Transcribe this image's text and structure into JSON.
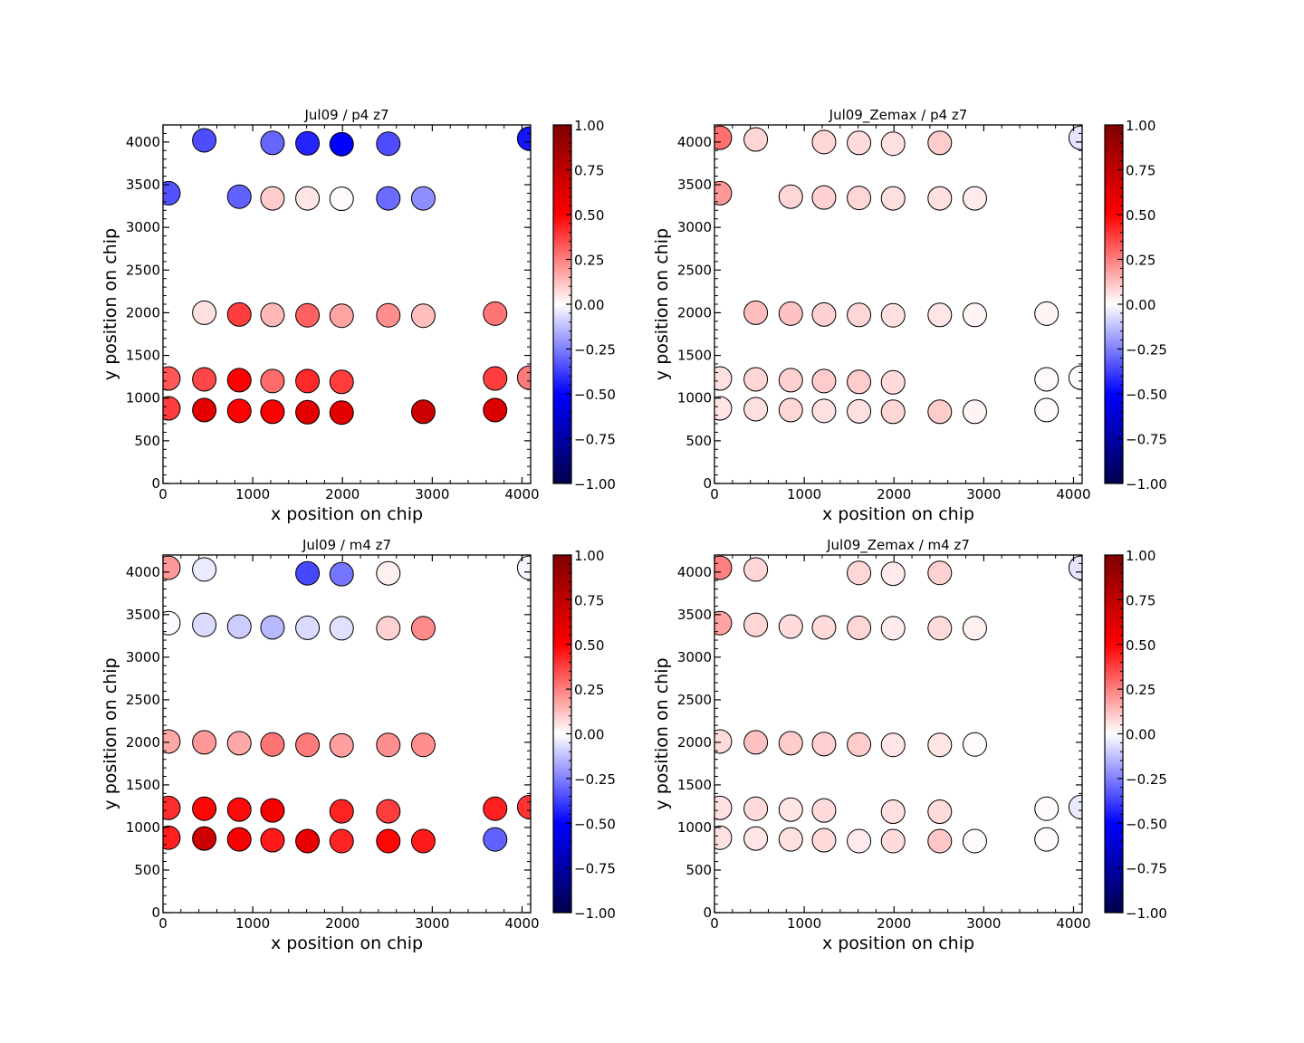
{
  "chart_data": {
    "type": "scatter",
    "colormap": "seismic",
    "colormap_stops": [
      "#00004c",
      "#0000ff",
      "#ffffff",
      "#ff0000",
      "#7f0000"
    ],
    "marker_edge_color": "#000000",
    "panels": [
      {
        "title": "Jul09 / p4 z7",
        "xlabel": "x position on chip",
        "ylabel": "y position on chip",
        "xlim": [
          0,
          4096
        ],
        "ylim": [
          0,
          4200
        ],
        "xticks": [
          "0",
          "1000",
          "2000",
          "3000",
          "4000"
        ],
        "yticks": [
          "0",
          "500",
          "1000",
          "1500",
          "2000",
          "2500",
          "3000",
          "3500",
          "4000"
        ],
        "colorbar": {
          "range": [
            -1,
            1
          ],
          "ticks": [
            "1.00",
            "0.75",
            "0.50",
            "0.25",
            "0.00",
            "−0.25",
            "−0.50",
            "−0.75",
            "−1.00"
          ]
        },
        "points": [
          {
            "x": 460,
            "y": 4020,
            "v": -0.35
          },
          {
            "x": 1220,
            "y": 3990,
            "v": -0.3
          },
          {
            "x": 1610,
            "y": 3985,
            "v": -0.43
          },
          {
            "x": 1990,
            "y": 3975,
            "v": -0.5
          },
          {
            "x": 2510,
            "y": 3980,
            "v": -0.35
          },
          {
            "x": 4080,
            "y": 4040,
            "v": -0.46
          },
          {
            "x": 60,
            "y": 3400,
            "v": -0.34
          },
          {
            "x": 850,
            "y": 3360,
            "v": -0.31
          },
          {
            "x": 1220,
            "y": 3340,
            "v": 0.1
          },
          {
            "x": 1610,
            "y": 3340,
            "v": 0.05
          },
          {
            "x": 1990,
            "y": 3335,
            "v": 0.01
          },
          {
            "x": 2510,
            "y": 3340,
            "v": -0.29
          },
          {
            "x": 2900,
            "y": 3340,
            "v": -0.22
          },
          {
            "x": 460,
            "y": 2000,
            "v": 0.06
          },
          {
            "x": 850,
            "y": 1980,
            "v": 0.38
          },
          {
            "x": 1220,
            "y": 1975,
            "v": 0.14
          },
          {
            "x": 1610,
            "y": 1970,
            "v": 0.31
          },
          {
            "x": 1990,
            "y": 1965,
            "v": 0.18
          },
          {
            "x": 2510,
            "y": 1970,
            "v": 0.22
          },
          {
            "x": 2900,
            "y": 1965,
            "v": 0.13
          },
          {
            "x": 3700,
            "y": 1990,
            "v": 0.27
          },
          {
            "x": 60,
            "y": 1230,
            "v": 0.33
          },
          {
            "x": 460,
            "y": 1220,
            "v": 0.36
          },
          {
            "x": 850,
            "y": 1210,
            "v": 0.5
          },
          {
            "x": 1220,
            "y": 1200,
            "v": 0.29
          },
          {
            "x": 1610,
            "y": 1200,
            "v": 0.42
          },
          {
            "x": 1990,
            "y": 1190,
            "v": 0.38
          },
          {
            "x": 3700,
            "y": 1230,
            "v": 0.38
          },
          {
            "x": 4080,
            "y": 1240,
            "v": 0.26
          },
          {
            "x": 60,
            "y": 880,
            "v": 0.38
          },
          {
            "x": 460,
            "y": 860,
            "v": 0.6
          },
          {
            "x": 850,
            "y": 850,
            "v": 0.5
          },
          {
            "x": 1220,
            "y": 840,
            "v": 0.5
          },
          {
            "x": 1610,
            "y": 835,
            "v": 0.6
          },
          {
            "x": 1990,
            "y": 830,
            "v": 0.6
          },
          {
            "x": 2900,
            "y": 840,
            "v": 0.7
          },
          {
            "x": 3700,
            "y": 860,
            "v": 0.64
          }
        ]
      },
      {
        "title": "Jul09_Zemax / p4 z7",
        "xlabel": "x position on chip",
        "ylabel": "y position on chip",
        "xlim": [
          0,
          4096
        ],
        "ylim": [
          0,
          4200
        ],
        "xticks": [
          "0",
          "1000",
          "2000",
          "3000",
          "4000"
        ],
        "yticks": [
          "0",
          "500",
          "1000",
          "1500",
          "2000",
          "2500",
          "3000",
          "3500",
          "4000"
        ],
        "colorbar": {
          "range": [
            -1,
            1
          ],
          "ticks": [
            "1.00",
            "0.75",
            "0.50",
            "0.25",
            "0.00",
            "−0.25",
            "−0.50",
            "−0.75",
            "−1.00"
          ]
        },
        "points": [
          {
            "x": 60,
            "y": 4050,
            "v": 0.28
          },
          {
            "x": 460,
            "y": 4030,
            "v": 0.08
          },
          {
            "x": 1220,
            "y": 4000,
            "v": 0.08
          },
          {
            "x": 1610,
            "y": 3990,
            "v": 0.07
          },
          {
            "x": 1990,
            "y": 3980,
            "v": 0.06
          },
          {
            "x": 2510,
            "y": 3990,
            "v": 0.1
          },
          {
            "x": 4080,
            "y": 4050,
            "v": -0.05
          },
          {
            "x": 60,
            "y": 3400,
            "v": 0.2
          },
          {
            "x": 850,
            "y": 3360,
            "v": 0.08
          },
          {
            "x": 1220,
            "y": 3350,
            "v": 0.09
          },
          {
            "x": 1610,
            "y": 3345,
            "v": 0.08
          },
          {
            "x": 1990,
            "y": 3340,
            "v": 0.06
          },
          {
            "x": 2510,
            "y": 3340,
            "v": 0.06
          },
          {
            "x": 2900,
            "y": 3340,
            "v": 0.04
          },
          {
            "x": 460,
            "y": 2000,
            "v": 0.13
          },
          {
            "x": 850,
            "y": 1990,
            "v": 0.12
          },
          {
            "x": 1220,
            "y": 1980,
            "v": 0.09
          },
          {
            "x": 1610,
            "y": 1975,
            "v": 0.08
          },
          {
            "x": 1990,
            "y": 1970,
            "v": 0.06
          },
          {
            "x": 2510,
            "y": 1975,
            "v": 0.05
          },
          {
            "x": 2900,
            "y": 1975,
            "v": 0.02
          },
          {
            "x": 3700,
            "y": 1990,
            "v": 0.02
          },
          {
            "x": 60,
            "y": 1230,
            "v": 0.06
          },
          {
            "x": 460,
            "y": 1220,
            "v": 0.08
          },
          {
            "x": 850,
            "y": 1210,
            "v": 0.09
          },
          {
            "x": 1220,
            "y": 1200,
            "v": 0.1
          },
          {
            "x": 1610,
            "y": 1190,
            "v": 0.1
          },
          {
            "x": 1990,
            "y": 1185,
            "v": 0.07
          },
          {
            "x": 3700,
            "y": 1220,
            "v": 0.01
          },
          {
            "x": 4080,
            "y": 1240,
            "v": -0.01
          },
          {
            "x": 60,
            "y": 880,
            "v": 0.05
          },
          {
            "x": 460,
            "y": 870,
            "v": 0.06
          },
          {
            "x": 850,
            "y": 860,
            "v": 0.08
          },
          {
            "x": 1220,
            "y": 850,
            "v": 0.06
          },
          {
            "x": 1610,
            "y": 845,
            "v": 0.06
          },
          {
            "x": 1990,
            "y": 840,
            "v": 0.08
          },
          {
            "x": 2510,
            "y": 840,
            "v": 0.1
          },
          {
            "x": 2900,
            "y": 840,
            "v": 0.02
          },
          {
            "x": 3700,
            "y": 860,
            "v": 0.01
          }
        ]
      },
      {
        "title": "Jul09 / m4 z7",
        "xlabel": "x position on chip",
        "ylabel": "y position on chip",
        "xlim": [
          0,
          4096
        ],
        "ylim": [
          0,
          4200
        ],
        "xticks": [
          "0",
          "1000",
          "2000",
          "3000",
          "4000"
        ],
        "yticks": [
          "0",
          "500",
          "1000",
          "1500",
          "2000",
          "2500",
          "3000",
          "3500",
          "4000"
        ],
        "colorbar": {
          "range": [
            -1,
            1
          ],
          "ticks": [
            "1.00",
            "0.75",
            "0.50",
            "0.25",
            "0.00",
            "−0.25",
            "−0.50",
            "−0.75",
            "−1.00"
          ]
        },
        "points": [
          {
            "x": 60,
            "y": 4050,
            "v": 0.2
          },
          {
            "x": 460,
            "y": 4030,
            "v": -0.04
          },
          {
            "x": 1610,
            "y": 3985,
            "v": -0.36
          },
          {
            "x": 1990,
            "y": 3975,
            "v": -0.27
          },
          {
            "x": 2510,
            "y": 3985,
            "v": 0.03
          },
          {
            "x": 4080,
            "y": 4050,
            "v": -0.02
          },
          {
            "x": 60,
            "y": 3400,
            "v": -0.01
          },
          {
            "x": 460,
            "y": 3380,
            "v": -0.07
          },
          {
            "x": 850,
            "y": 3360,
            "v": -0.1
          },
          {
            "x": 1220,
            "y": 3350,
            "v": -0.14
          },
          {
            "x": 1610,
            "y": 3345,
            "v": -0.07
          },
          {
            "x": 1990,
            "y": 3340,
            "v": -0.06
          },
          {
            "x": 2510,
            "y": 3340,
            "v": 0.09
          },
          {
            "x": 2900,
            "y": 3340,
            "v": 0.23
          },
          {
            "x": 60,
            "y": 2010,
            "v": 0.17
          },
          {
            "x": 460,
            "y": 2000,
            "v": 0.2
          },
          {
            "x": 850,
            "y": 1990,
            "v": 0.17
          },
          {
            "x": 1220,
            "y": 1975,
            "v": 0.27
          },
          {
            "x": 1610,
            "y": 1970,
            "v": 0.26
          },
          {
            "x": 1990,
            "y": 1965,
            "v": 0.19
          },
          {
            "x": 2510,
            "y": 1970,
            "v": 0.22
          },
          {
            "x": 2900,
            "y": 1970,
            "v": 0.22
          },
          {
            "x": 60,
            "y": 1230,
            "v": 0.41
          },
          {
            "x": 460,
            "y": 1220,
            "v": 0.49
          },
          {
            "x": 850,
            "y": 1210,
            "v": 0.48
          },
          {
            "x": 1220,
            "y": 1200,
            "v": 0.53
          },
          {
            "x": 1990,
            "y": 1190,
            "v": 0.43
          },
          {
            "x": 2510,
            "y": 1190,
            "v": 0.38
          },
          {
            "x": 3700,
            "y": 1220,
            "v": 0.44
          },
          {
            "x": 4080,
            "y": 1240,
            "v": 0.4
          },
          {
            "x": 60,
            "y": 880,
            "v": 0.44
          },
          {
            "x": 460,
            "y": 870,
            "v": 0.7
          },
          {
            "x": 850,
            "y": 860,
            "v": 0.53
          },
          {
            "x": 1220,
            "y": 850,
            "v": 0.45
          },
          {
            "x": 1610,
            "y": 840,
            "v": 0.59
          },
          {
            "x": 1990,
            "y": 840,
            "v": 0.43
          },
          {
            "x": 2510,
            "y": 840,
            "v": 0.49
          },
          {
            "x": 2900,
            "y": 840,
            "v": 0.45
          },
          {
            "x": 3700,
            "y": 860,
            "v": -0.31
          }
        ]
      },
      {
        "title": "Jul09_Zemax / m4 z7",
        "xlabel": "x position on chip",
        "ylabel": "y position on chip",
        "xlim": [
          0,
          4096
        ],
        "ylim": [
          0,
          4200
        ],
        "xticks": [
          "0",
          "1000",
          "2000",
          "3000",
          "4000"
        ],
        "yticks": [
          "0",
          "500",
          "1000",
          "1500",
          "2000",
          "2500",
          "3000",
          "3500",
          "4000"
        ],
        "colorbar": {
          "range": [
            -1,
            1
          ],
          "ticks": [
            "1.00",
            "0.75",
            "0.50",
            "0.25",
            "0.00",
            "−0.25",
            "−0.50",
            "−0.75",
            "−1.00"
          ]
        },
        "points": [
          {
            "x": 60,
            "y": 4050,
            "v": 0.25
          },
          {
            "x": 460,
            "y": 4030,
            "v": 0.08
          },
          {
            "x": 1610,
            "y": 3990,
            "v": 0.08
          },
          {
            "x": 1990,
            "y": 3980,
            "v": 0.04
          },
          {
            "x": 2510,
            "y": 3990,
            "v": 0.09
          },
          {
            "x": 4080,
            "y": 4050,
            "v": -0.05
          },
          {
            "x": 60,
            "y": 3400,
            "v": 0.18
          },
          {
            "x": 460,
            "y": 3380,
            "v": 0.08
          },
          {
            "x": 850,
            "y": 3360,
            "v": 0.07
          },
          {
            "x": 1220,
            "y": 3350,
            "v": 0.07
          },
          {
            "x": 1610,
            "y": 3345,
            "v": 0.08
          },
          {
            "x": 1990,
            "y": 3340,
            "v": 0.04
          },
          {
            "x": 2510,
            "y": 3340,
            "v": 0.07
          },
          {
            "x": 2900,
            "y": 3340,
            "v": 0.03
          },
          {
            "x": 60,
            "y": 2010,
            "v": 0.07
          },
          {
            "x": 460,
            "y": 2000,
            "v": 0.12
          },
          {
            "x": 850,
            "y": 1990,
            "v": 0.1
          },
          {
            "x": 1220,
            "y": 1980,
            "v": 0.09
          },
          {
            "x": 1610,
            "y": 1975,
            "v": 0.1
          },
          {
            "x": 1990,
            "y": 1970,
            "v": 0.05
          },
          {
            "x": 2510,
            "y": 1970,
            "v": 0.05
          },
          {
            "x": 2900,
            "y": 1975,
            "v": 0.01
          },
          {
            "x": 60,
            "y": 1230,
            "v": 0.06
          },
          {
            "x": 460,
            "y": 1220,
            "v": 0.07
          },
          {
            "x": 850,
            "y": 1210,
            "v": 0.05
          },
          {
            "x": 1220,
            "y": 1200,
            "v": 0.07
          },
          {
            "x": 1990,
            "y": 1185,
            "v": 0.06
          },
          {
            "x": 2510,
            "y": 1185,
            "v": 0.07
          },
          {
            "x": 3700,
            "y": 1220,
            "v": 0.01
          },
          {
            "x": 4080,
            "y": 1240,
            "v": -0.04
          },
          {
            "x": 60,
            "y": 880,
            "v": 0.06
          },
          {
            "x": 460,
            "y": 870,
            "v": 0.05
          },
          {
            "x": 850,
            "y": 860,
            "v": 0.06
          },
          {
            "x": 1220,
            "y": 850,
            "v": 0.07
          },
          {
            "x": 1610,
            "y": 840,
            "v": 0.04
          },
          {
            "x": 1990,
            "y": 840,
            "v": 0.07
          },
          {
            "x": 2510,
            "y": 840,
            "v": 0.11
          },
          {
            "x": 2900,
            "y": 840,
            "v": 0.01
          },
          {
            "x": 3700,
            "y": 860,
            "v": 0.01
          }
        ]
      }
    ]
  }
}
